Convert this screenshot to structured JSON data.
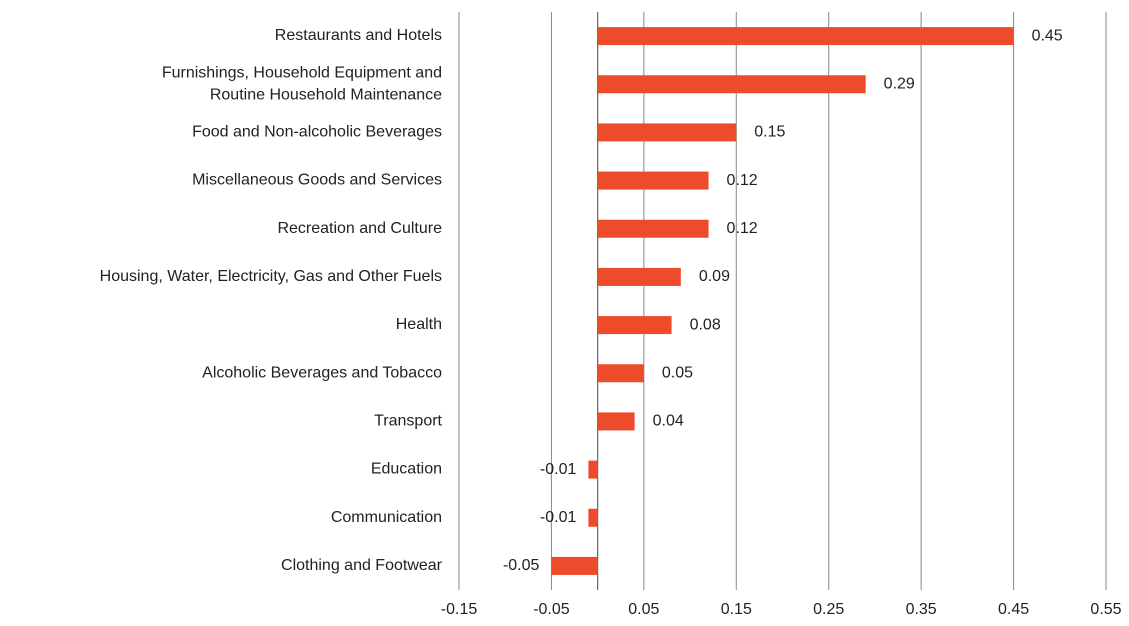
{
  "chart_data": {
    "type": "bar",
    "orientation": "horizontal",
    "categories": [
      "Restaurants and Hotels",
      "Furnishings, Household Equipment and\nRoutine Household Maintenance",
      "Food and Non-alcoholic Beverages",
      "Miscellaneous Goods and Services",
      "Recreation and Culture",
      "Housing, Water, Electricity, Gas and Other Fuels",
      "Health",
      "Alcoholic Beverages and Tobacco",
      "Transport",
      "Education",
      "Communication",
      "Clothing and Footwear"
    ],
    "values": [
      0.45,
      0.29,
      0.15,
      0.12,
      0.12,
      0.09,
      0.08,
      0.05,
      0.04,
      -0.01,
      -0.01,
      -0.05
    ],
    "color": "#ee4b2b",
    "xlim": [
      -0.15,
      0.55
    ],
    "xticks": [
      -0.15,
      -0.05,
      0.05,
      0.15,
      0.25,
      0.35,
      0.45,
      0.55
    ],
    "grid": true
  }
}
